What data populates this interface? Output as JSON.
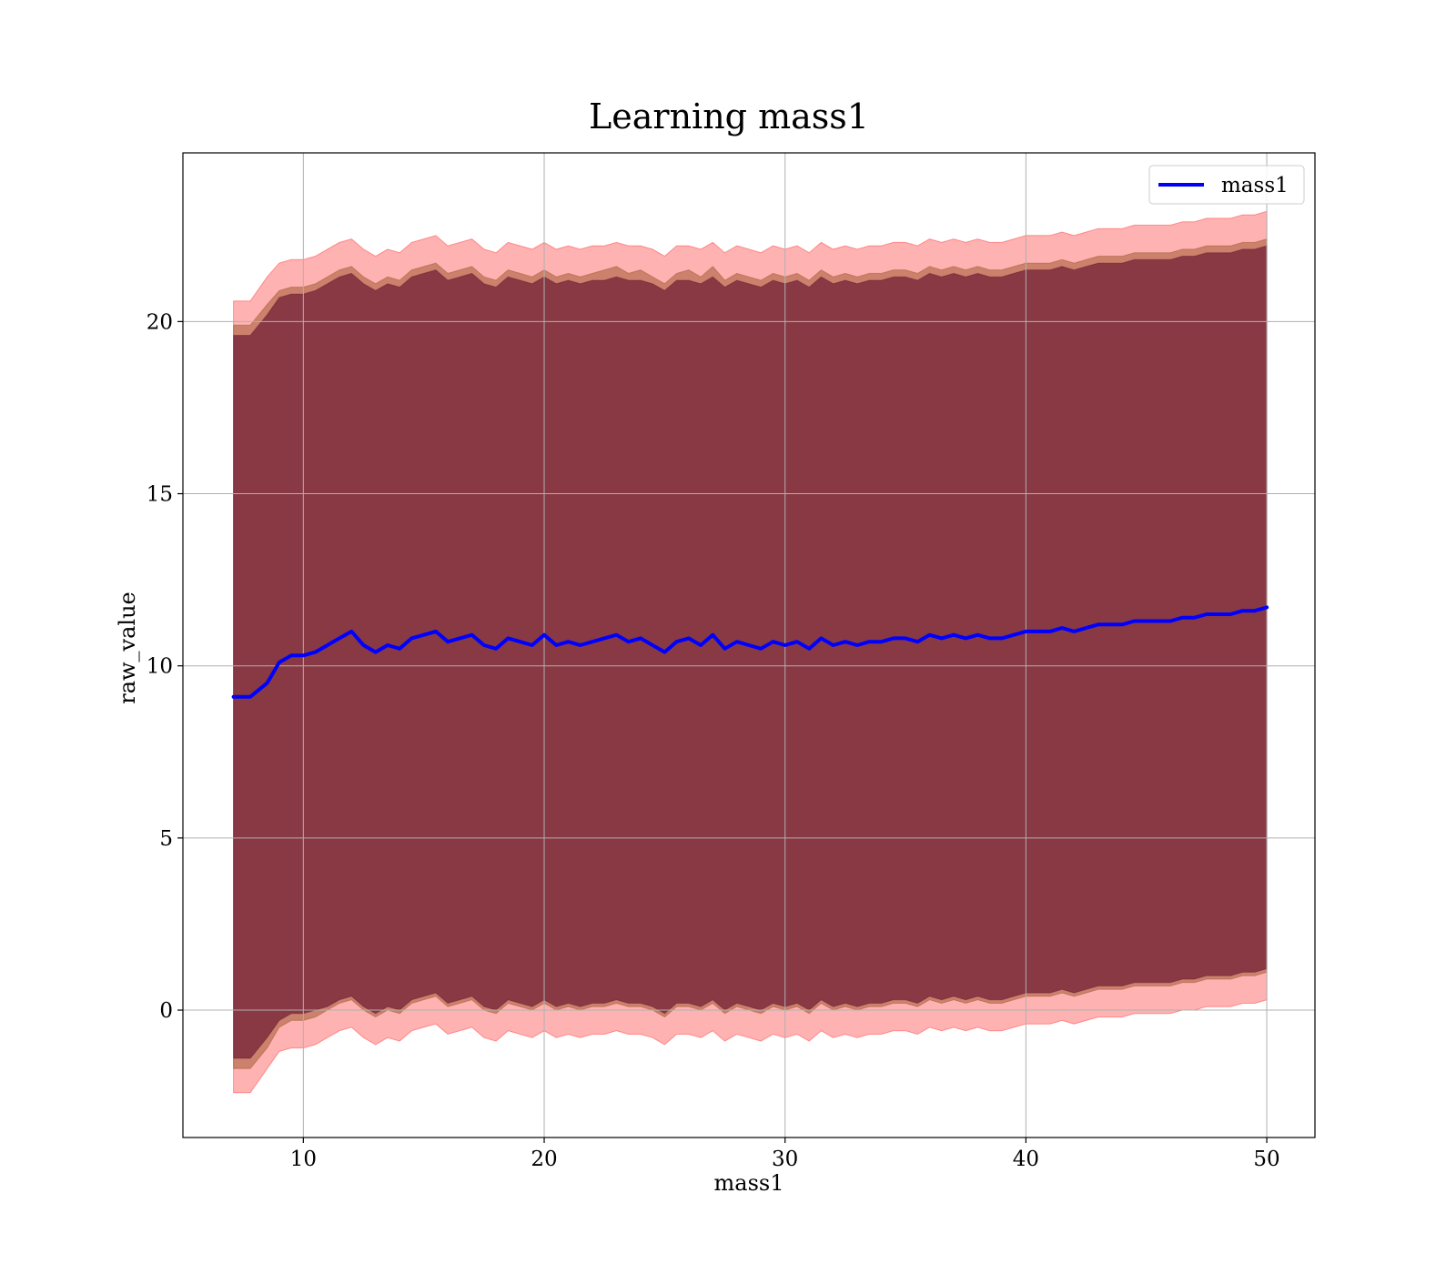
{
  "chart_data": {
    "type": "line",
    "title": "Learning mass1",
    "xlabel": "mass1",
    "ylabel": "raw_value",
    "xlim": [
      5,
      52
    ],
    "ylim": [
      -3.7,
      24.9
    ],
    "xticks": [
      10,
      20,
      30,
      40,
      50
    ],
    "yticks": [
      0,
      5,
      10,
      15,
      20
    ],
    "grid": true,
    "legend": {
      "position": "top-right",
      "entries": [
        "mass1"
      ]
    },
    "series": [
      {
        "name": "mass1",
        "color": "#0000ff",
        "x": [
          7.1,
          7.8,
          8.5,
          9.0,
          9.5,
          10.0,
          10.5,
          11.0,
          11.5,
          12.0,
          12.5,
          13.0,
          13.5,
          14.0,
          14.5,
          15.0,
          15.5,
          16.0,
          16.5,
          17.0,
          17.5,
          18.0,
          18.5,
          19.0,
          19.5,
          20.0,
          20.5,
          21.0,
          21.5,
          22.0,
          22.5,
          23.0,
          23.5,
          24.0,
          24.5,
          25.0,
          25.5,
          26.0,
          26.5,
          27.0,
          27.5,
          28.0,
          28.5,
          29.0,
          29.5,
          30.0,
          30.5,
          31.0,
          31.5,
          32.0,
          32.5,
          33.0,
          33.5,
          34.0,
          34.5,
          35.0,
          35.5,
          36.0,
          36.5,
          37.0,
          37.5,
          38.0,
          38.5,
          39.0,
          39.5,
          40.0,
          40.5,
          41.0,
          41.5,
          42.0,
          42.5,
          43.0,
          43.5,
          44.0,
          44.5,
          45.0,
          45.5,
          46.0,
          46.5,
          47.0,
          47.5,
          48.0,
          48.5,
          49.0,
          49.5,
          50.0
        ],
        "y": [
          9.1,
          9.1,
          9.5,
          10.1,
          10.3,
          10.3,
          10.4,
          10.6,
          10.8,
          11.0,
          10.6,
          10.4,
          10.6,
          10.5,
          10.8,
          10.9,
          11.0,
          10.7,
          10.8,
          10.9,
          10.6,
          10.5,
          10.8,
          10.7,
          10.6,
          10.9,
          10.6,
          10.7,
          10.6,
          10.7,
          10.8,
          10.9,
          10.7,
          10.8,
          10.6,
          10.4,
          10.7,
          10.8,
          10.6,
          10.9,
          10.5,
          10.7,
          10.6,
          10.5,
          10.7,
          10.6,
          10.7,
          10.5,
          10.8,
          10.6,
          10.7,
          10.6,
          10.7,
          10.7,
          10.8,
          10.8,
          10.7,
          10.9,
          10.8,
          10.9,
          10.8,
          10.9,
          10.8,
          10.8,
          10.9,
          11.0,
          11.0,
          11.0,
          11.1,
          11.0,
          11.1,
          11.2,
          11.2,
          11.2,
          11.3,
          11.3,
          11.3,
          11.3,
          11.4,
          11.4,
          11.5,
          11.5,
          11.5,
          11.6,
          11.6,
          11.7
        ]
      }
    ],
    "bands": [
      {
        "color": "#ff0000",
        "opacity": 0.3,
        "upper": [
          20.6,
          20.6,
          21.3,
          21.7,
          21.8,
          21.8,
          21.9,
          22.1,
          22.3,
          22.4,
          22.1,
          21.9,
          22.1,
          22.0,
          22.3,
          22.4,
          22.5,
          22.2,
          22.3,
          22.4,
          22.1,
          22.0,
          22.3,
          22.2,
          22.1,
          22.3,
          22.1,
          22.2,
          22.1,
          22.2,
          22.2,
          22.3,
          22.2,
          22.2,
          22.1,
          21.9,
          22.2,
          22.2,
          22.1,
          22.3,
          22.0,
          22.2,
          22.1,
          22.0,
          22.2,
          22.1,
          22.2,
          22.0,
          22.3,
          22.1,
          22.2,
          22.1,
          22.2,
          22.2,
          22.3,
          22.3,
          22.2,
          22.4,
          22.3,
          22.4,
          22.3,
          22.4,
          22.3,
          22.3,
          22.4,
          22.5,
          22.5,
          22.5,
          22.6,
          22.5,
          22.6,
          22.7,
          22.7,
          22.7,
          22.8,
          22.8,
          22.8,
          22.8,
          22.9,
          22.9,
          23.0,
          23.0,
          23.0,
          23.1,
          23.1,
          23.2
        ],
        "lower": [
          -2.4,
          -2.4,
          -1.7,
          -1.2,
          -1.1,
          -1.1,
          -1.0,
          -0.8,
          -0.6,
          -0.5,
          -0.8,
          -1.0,
          -0.8,
          -0.9,
          -0.6,
          -0.5,
          -0.4,
          -0.7,
          -0.6,
          -0.5,
          -0.8,
          -0.9,
          -0.6,
          -0.7,
          -0.8,
          -0.6,
          -0.8,
          -0.7,
          -0.8,
          -0.7,
          -0.7,
          -0.6,
          -0.7,
          -0.7,
          -0.8,
          -1.0,
          -0.7,
          -0.7,
          -0.8,
          -0.6,
          -0.9,
          -0.7,
          -0.8,
          -0.9,
          -0.7,
          -0.8,
          -0.7,
          -0.9,
          -0.6,
          -0.8,
          -0.7,
          -0.8,
          -0.7,
          -0.7,
          -0.6,
          -0.6,
          -0.7,
          -0.5,
          -0.6,
          -0.5,
          -0.6,
          -0.5,
          -0.6,
          -0.6,
          -0.5,
          -0.4,
          -0.4,
          -0.4,
          -0.3,
          -0.4,
          -0.3,
          -0.2,
          -0.2,
          -0.2,
          -0.1,
          -0.1,
          -0.1,
          -0.1,
          0.0,
          0.0,
          0.1,
          0.1,
          0.1,
          0.2,
          0.2,
          0.3
        ]
      },
      {
        "color": "#8b4513",
        "opacity": 0.45,
        "upper": [
          19.9,
          19.9,
          20.5,
          20.9,
          21.0,
          21.0,
          21.1,
          21.3,
          21.5,
          21.6,
          21.3,
          21.1,
          21.3,
          21.2,
          21.5,
          21.6,
          21.7,
          21.4,
          21.5,
          21.6,
          21.3,
          21.2,
          21.5,
          21.4,
          21.3,
          21.5,
          21.3,
          21.4,
          21.3,
          21.4,
          21.5,
          21.6,
          21.4,
          21.5,
          21.3,
          21.1,
          21.4,
          21.5,
          21.3,
          21.6,
          21.2,
          21.4,
          21.3,
          21.2,
          21.4,
          21.3,
          21.4,
          21.2,
          21.5,
          21.3,
          21.4,
          21.3,
          21.4,
          21.4,
          21.5,
          21.5,
          21.4,
          21.6,
          21.5,
          21.6,
          21.5,
          21.6,
          21.5,
          21.5,
          21.6,
          21.7,
          21.7,
          21.7,
          21.8,
          21.7,
          21.8,
          21.9,
          21.9,
          21.9,
          22.0,
          22.0,
          22.0,
          22.0,
          22.1,
          22.1,
          22.2,
          22.2,
          22.2,
          22.3,
          22.3,
          22.4
        ],
        "lower": [
          -1.7,
          -1.7,
          -1.1,
          -0.5,
          -0.3,
          -0.3,
          -0.2,
          0.0,
          0.2,
          0.3,
          0.0,
          -0.2,
          0.0,
          -0.1,
          0.2,
          0.3,
          0.4,
          0.1,
          0.2,
          0.3,
          0.0,
          -0.1,
          0.2,
          0.1,
          0.0,
          0.2,
          0.0,
          0.1,
          0.0,
          0.1,
          0.1,
          0.2,
          0.1,
          0.1,
          0.0,
          -0.2,
          0.1,
          0.1,
          0.0,
          0.2,
          -0.1,
          0.1,
          0.0,
          -0.1,
          0.1,
          0.0,
          0.1,
          -0.1,
          0.2,
          0.0,
          0.1,
          0.0,
          0.1,
          0.1,
          0.2,
          0.2,
          0.1,
          0.3,
          0.2,
          0.3,
          0.2,
          0.3,
          0.2,
          0.2,
          0.3,
          0.4,
          0.4,
          0.4,
          0.5,
          0.4,
          0.5,
          0.6,
          0.6,
          0.6,
          0.7,
          0.7,
          0.7,
          0.7,
          0.8,
          0.8,
          0.9,
          0.9,
          0.9,
          1.0,
          1.0,
          1.1
        ]
      },
      {
        "color": "#5c0a2a",
        "opacity": 0.6,
        "upper": [
          19.6,
          19.6,
          20.2,
          20.7,
          20.8,
          20.8,
          20.9,
          21.1,
          21.3,
          21.4,
          21.1,
          20.9,
          21.1,
          21.0,
          21.3,
          21.4,
          21.5,
          21.2,
          21.3,
          21.4,
          21.1,
          21.0,
          21.3,
          21.2,
          21.1,
          21.3,
          21.1,
          21.2,
          21.1,
          21.2,
          21.2,
          21.3,
          21.2,
          21.2,
          21.1,
          20.9,
          21.2,
          21.2,
          21.1,
          21.3,
          21.0,
          21.2,
          21.1,
          21.0,
          21.2,
          21.1,
          21.2,
          21.0,
          21.3,
          21.1,
          21.2,
          21.1,
          21.2,
          21.2,
          21.3,
          21.3,
          21.2,
          21.4,
          21.3,
          21.4,
          21.3,
          21.4,
          21.3,
          21.3,
          21.4,
          21.5,
          21.5,
          21.5,
          21.6,
          21.5,
          21.6,
          21.7,
          21.7,
          21.7,
          21.8,
          21.8,
          21.8,
          21.8,
          21.9,
          21.9,
          22.0,
          22.0,
          22.0,
          22.1,
          22.1,
          22.2
        ],
        "lower": [
          -1.4,
          -1.4,
          -0.8,
          -0.3,
          -0.1,
          -0.1,
          0.0,
          0.1,
          0.3,
          0.4,
          0.1,
          -0.1,
          0.1,
          0.0,
          0.3,
          0.4,
          0.5,
          0.2,
          0.3,
          0.4,
          0.1,
          0.0,
          0.3,
          0.2,
          0.1,
          0.3,
          0.1,
          0.2,
          0.1,
          0.2,
          0.2,
          0.3,
          0.2,
          0.2,
          0.1,
          -0.1,
          0.2,
          0.2,
          0.1,
          0.3,
          0.0,
          0.2,
          0.1,
          0.0,
          0.2,
          0.1,
          0.2,
          0.0,
          0.3,
          0.1,
          0.2,
          0.1,
          0.2,
          0.2,
          0.3,
          0.3,
          0.2,
          0.4,
          0.3,
          0.4,
          0.3,
          0.4,
          0.3,
          0.3,
          0.4,
          0.5,
          0.5,
          0.5,
          0.6,
          0.5,
          0.6,
          0.7,
          0.7,
          0.7,
          0.8,
          0.8,
          0.8,
          0.8,
          0.9,
          0.9,
          1.0,
          1.0,
          1.0,
          1.1,
          1.1,
          1.2
        ]
      }
    ]
  }
}
